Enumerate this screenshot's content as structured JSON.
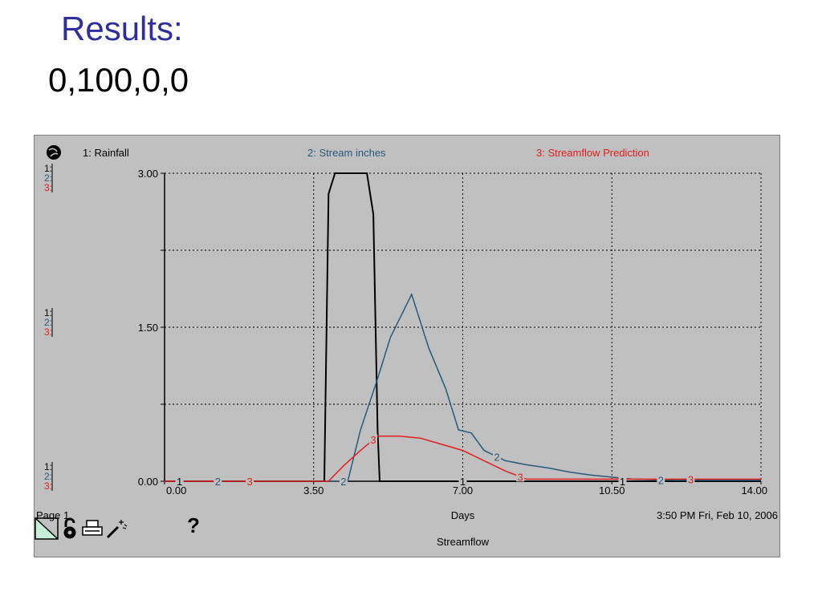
{
  "slide": {
    "title": "Results:",
    "subtitle": "0,100,0,0"
  },
  "colors": {
    "title": "#2e2e9e",
    "panel_bg": "#c0c0c0",
    "rainfall": "#000000",
    "stream_inches": "#2a5a78",
    "streamflow_prediction": "#e02020"
  },
  "chart_data": {
    "type": "line",
    "title": "Streamflow",
    "xlabel": "Days",
    "xlim": [
      0,
      14
    ],
    "ylim": [
      0,
      3
    ],
    "x_ticks": [
      "0.00",
      "3.50",
      "7.00",
      "10.50",
      "14.00"
    ],
    "y_ticks": [
      "0.00",
      "1.50",
      "3.00"
    ],
    "grid": true,
    "legend_position": "top",
    "axis_markers": [
      "1:",
      "2:",
      "3:"
    ],
    "series": [
      {
        "name": "1: Rainfall",
        "marker": "1",
        "color": "#000000",
        "x": [
          0,
          3.5,
          3.75,
          3.85,
          4.0,
          4.75,
          4.9,
          5.0,
          5.05,
          14.0
        ],
        "y": [
          0,
          0,
          0,
          2.8,
          3.0,
          3.0,
          2.6,
          0.5,
          0,
          0
        ]
      },
      {
        "name": "2: Stream inches",
        "marker": "2",
        "color": "#2a5a78",
        "x": [
          0,
          4.3,
          4.6,
          5.0,
          5.3,
          5.8,
          6.2,
          6.6,
          6.9,
          7.2,
          7.5,
          8.0,
          8.5,
          9.0,
          9.5,
          10.0,
          10.5,
          11.0,
          12.0,
          14.0
        ],
        "y": [
          0,
          0,
          0.5,
          1.0,
          1.4,
          1.82,
          1.3,
          0.9,
          0.5,
          0.47,
          0.3,
          0.2,
          0.16,
          0.13,
          0.09,
          0.06,
          0.04,
          0.02,
          0.01,
          0.01
        ]
      },
      {
        "name": "3: Streamflow Prediction",
        "marker": "3",
        "color": "#e02020",
        "x": [
          0,
          3.85,
          4.2,
          4.6,
          5.0,
          5.5,
          6.0,
          6.5,
          7.0,
          7.5,
          8.0,
          8.5,
          14.0
        ],
        "y": [
          0,
          0,
          0.15,
          0.3,
          0.44,
          0.44,
          0.42,
          0.36,
          0.3,
          0.2,
          0.1,
          0.02,
          0.02
        ]
      }
    ]
  },
  "footer": {
    "page_label": "Page 1",
    "x_title": "Days",
    "timestamp": "3:50 PM  Fri, Feb 10, 2006",
    "caption": "Streamflow"
  },
  "icons": {
    "page": "page-corner-icon",
    "lock": "lock-icon",
    "print": "print-icon",
    "wand": "wand-icon",
    "help": "help-icon"
  },
  "help_glyph": "?"
}
